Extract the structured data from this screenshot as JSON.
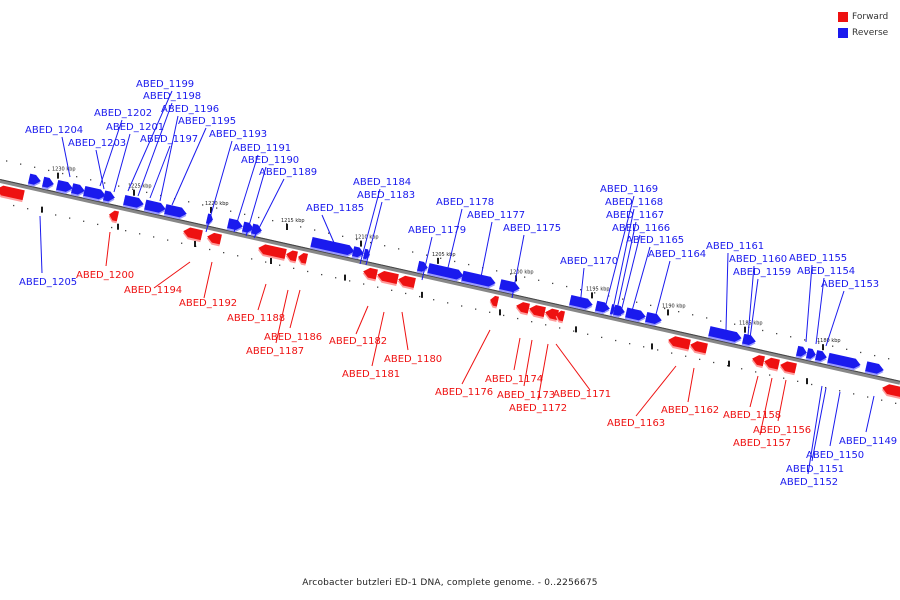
{
  "colors": {
    "forward": "#ee1111",
    "reverse": "#1a1aee",
    "backbone": "#888888"
  },
  "legend": [
    {
      "label": "Forward",
      "color": "#ee1111"
    },
    {
      "label": "Reverse",
      "color": "#1a1aee"
    }
  ],
  "caption": "Arcobacter butzleri ED-1 DNA, complete genome. - 0..2256675",
  "ticks": [
    "1230 kbp",
    "1225 kbp",
    "1220 kbp",
    "1215 kbp",
    "1210 kbp",
    "1205 kbp",
    "1200 kbp",
    "1195 kbp",
    "1190 kbp",
    "1185 kbp",
    "1180 kbp"
  ],
  "genes": [
    {
      "label": "ABED_1205",
      "strand": "reverse"
    },
    {
      "label": "ABED_1204",
      "strand": "reverse"
    },
    {
      "label": "ABED_1203",
      "strand": "reverse"
    },
    {
      "label": "ABED_1202",
      "strand": "reverse"
    },
    {
      "label": "ABED_1201",
      "strand": "reverse"
    },
    {
      "label": "ABED_1200",
      "strand": "forward"
    },
    {
      "label": "ABED_1199",
      "strand": "reverse"
    },
    {
      "label": "ABED_1198",
      "strand": "reverse"
    },
    {
      "label": "ABED_1197",
      "strand": "reverse"
    },
    {
      "label": "ABED_1196",
      "strand": "reverse"
    },
    {
      "label": "ABED_1195",
      "strand": "reverse"
    },
    {
      "label": "ABED_1194",
      "strand": "forward"
    },
    {
      "label": "ABED_1193",
      "strand": "reverse"
    },
    {
      "label": "ABED_1192",
      "strand": "forward"
    },
    {
      "label": "ABED_1191",
      "strand": "reverse"
    },
    {
      "label": "ABED_1190",
      "strand": "reverse"
    },
    {
      "label": "ABED_1189",
      "strand": "reverse"
    },
    {
      "label": "ABED_1188",
      "strand": "forward"
    },
    {
      "label": "ABED_1187",
      "strand": "forward"
    },
    {
      "label": "ABED_1186",
      "strand": "forward"
    },
    {
      "label": "ABED_1185",
      "strand": "reverse"
    },
    {
      "label": "ABED_1184",
      "strand": "reverse"
    },
    {
      "label": "ABED_1183",
      "strand": "reverse"
    },
    {
      "label": "ABED_1182",
      "strand": "forward"
    },
    {
      "label": "ABED_1181",
      "strand": "forward"
    },
    {
      "label": "ABED_1180",
      "strand": "forward"
    },
    {
      "label": "ABED_1179",
      "strand": "reverse"
    },
    {
      "label": "ABED_1178",
      "strand": "reverse"
    },
    {
      "label": "ABED_1177",
      "strand": "reverse"
    },
    {
      "label": "ABED_1176",
      "strand": "forward"
    },
    {
      "label": "ABED_1175",
      "strand": "reverse"
    },
    {
      "label": "ABED_1174",
      "strand": "forward"
    },
    {
      "label": "ABED_1173",
      "strand": "forward"
    },
    {
      "label": "ABED_1172",
      "strand": "forward"
    },
    {
      "label": "ABED_1171",
      "strand": "forward"
    },
    {
      "label": "ABED_1170",
      "strand": "reverse"
    },
    {
      "label": "ABED_1169",
      "strand": "reverse"
    },
    {
      "label": "ABED_1168",
      "strand": "reverse"
    },
    {
      "label": "ABED_1167",
      "strand": "reverse"
    },
    {
      "label": "ABED_1166",
      "strand": "reverse"
    },
    {
      "label": "ABED_1165",
      "strand": "reverse"
    },
    {
      "label": "ABED_1164",
      "strand": "reverse"
    },
    {
      "label": "ABED_1163",
      "strand": "forward"
    },
    {
      "label": "ABED_1162",
      "strand": "forward"
    },
    {
      "label": "ABED_1161",
      "strand": "reverse"
    },
    {
      "label": "ABED_1160",
      "strand": "reverse"
    },
    {
      "label": "ABED_1159",
      "strand": "reverse"
    },
    {
      "label": "ABED_1158",
      "strand": "forward"
    },
    {
      "label": "ABED_1157",
      "strand": "forward"
    },
    {
      "label": "ABED_1156",
      "strand": "forward"
    },
    {
      "label": "ABED_1155",
      "strand": "reverse"
    },
    {
      "label": "ABED_1154",
      "strand": "reverse"
    },
    {
      "label": "ABED_1153",
      "strand": "reverse"
    },
    {
      "label": "ABED_1152",
      "strand": "reverse"
    },
    {
      "label": "ABED_1151",
      "strand": "reverse"
    },
    {
      "label": "ABED_1150",
      "strand": "reverse"
    },
    {
      "label": "ABED_1149",
      "strand": "reverse"
    }
  ]
}
